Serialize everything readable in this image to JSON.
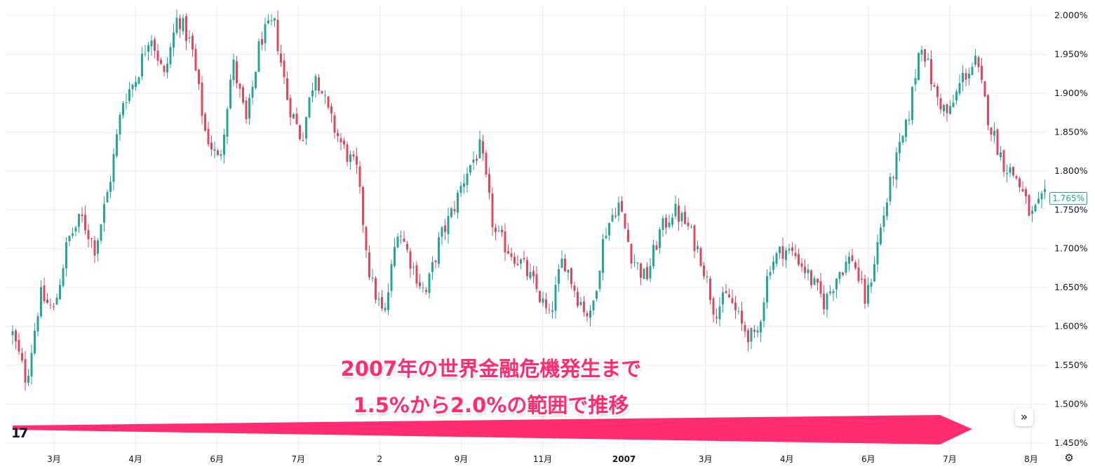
{
  "chart_data": {
    "type": "candlestick",
    "title": "",
    "ylim": [
      1.43,
      2.02
    ],
    "y_ticks": [
      1.45,
      1.5,
      1.55,
      1.6,
      1.65,
      1.7,
      1.75,
      1.8,
      1.85,
      1.9,
      1.95,
      2.0
    ],
    "y_tick_labels": [
      "1.450%",
      "1.500%",
      "1.550%",
      "1.600%",
      "1.650%",
      "1.700%",
      "1.750%",
      "1.800%",
      "1.850%",
      "1.900%",
      "1.950%",
      "2.000%"
    ],
    "x_tick_labels": [
      {
        "label": "3月",
        "bold": false
      },
      {
        "label": "4月",
        "bold": false
      },
      {
        "label": "6月",
        "bold": false
      },
      {
        "label": "7月",
        "bold": false
      },
      {
        "label": "2",
        "bold": false
      },
      {
        "label": "9月",
        "bold": false
      },
      {
        "label": "11月",
        "bold": false
      },
      {
        "label": "2007",
        "bold": true
      },
      {
        "label": "3月",
        "bold": false
      },
      {
        "label": "4月",
        "bold": false
      },
      {
        "label": "6月",
        "bold": false
      },
      {
        "label": "7月",
        "bold": false
      },
      {
        "label": "8月",
        "bold": false
      }
    ],
    "last_price_label": "1.765%",
    "last_price": 1.765,
    "close_path": [
      1.59,
      1.53,
      1.64,
      1.62,
      1.71,
      1.74,
      1.7,
      1.78,
      1.89,
      1.92,
      1.98,
      1.92,
      2.0,
      1.96,
      1.85,
      1.81,
      1.94,
      1.86,
      1.97,
      1.99,
      1.89,
      1.84,
      1.93,
      1.87,
      1.83,
      1.8,
      1.66,
      1.61,
      1.73,
      1.68,
      1.64,
      1.71,
      1.75,
      1.8,
      1.83,
      1.72,
      1.7,
      1.68,
      1.65,
      1.61,
      1.69,
      1.64,
      1.61,
      1.72,
      1.76,
      1.69,
      1.66,
      1.72,
      1.75,
      1.73,
      1.69,
      1.62,
      1.64,
      1.6,
      1.58,
      1.68,
      1.7,
      1.69,
      1.66,
      1.63,
      1.67,
      1.69,
      1.63,
      1.72,
      1.8,
      1.86,
      1.97,
      1.9,
      1.87,
      1.92,
      1.94,
      1.86,
      1.81,
      1.79,
      1.74,
      1.765
    ],
    "colors": {
      "up": "#26a69a",
      "down": "#e0475b",
      "grid": "#ececef",
      "arrow": "#ff2d6f"
    }
  },
  "annotation": {
    "line1": "2007年の世界金融危機発生まで",
    "line2": "1.5%から2.0%の範囲で推移"
  },
  "logo_text": "17",
  "scroll_icon": "double-chevron-right",
  "settings_icon": "gear"
}
